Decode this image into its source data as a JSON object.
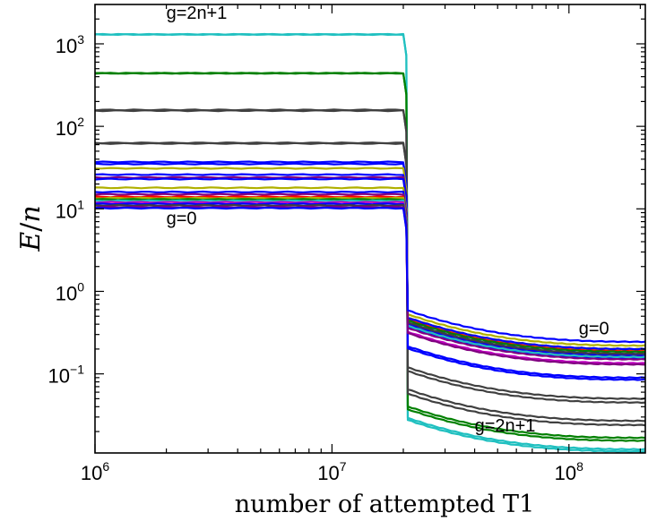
{
  "chart_data": {
    "type": "line",
    "title": "",
    "xlabel": "number of attempted T1",
    "ylabel": "E/n",
    "ylabel_parts": {
      "num": "E",
      "slash": "/",
      "den": "n"
    },
    "x_scale": "log",
    "y_scale": "log",
    "xlim": [
      1000000,
      210000000
    ],
    "ylim": [
      0.011,
      3000
    ],
    "x_ticks": [
      {
        "value": 1000000,
        "base": "10",
        "exp": "6"
      },
      {
        "value": 10000000,
        "base": "10",
        "exp": "7"
      },
      {
        "value": 100000000,
        "base": "10",
        "exp": "8"
      }
    ],
    "y_ticks": [
      {
        "value": 0.1,
        "base": "10",
        "exp": "−1"
      },
      {
        "value": 1,
        "base": "10",
        "exp": "0"
      },
      {
        "value": 10,
        "base": "10",
        "exp": "1"
      },
      {
        "value": 100,
        "base": "10",
        "exp": "2"
      },
      {
        "value": 1000,
        "base": "10",
        "exp": "3"
      }
    ],
    "grid": false,
    "legend": "none",
    "drop_x": 20000000,
    "annotations": [
      {
        "text": "g=2n+1",
        "x": 2000000,
        "y": 2000
      },
      {
        "text": "g=0",
        "x": 2000000,
        "y": 6.5
      },
      {
        "text": "g=0",
        "x": 110000000,
        "y": 0.3
      },
      {
        "text": "g=2n+1",
        "x": 40000000,
        "y": 0.02
      }
    ],
    "series": [
      {
        "color": "#20c0c0",
        "start": 1300,
        "end": 0.0115
      },
      {
        "color": "#20c0c0",
        "start": 1300,
        "end": 0.0122
      },
      {
        "color": "#008000",
        "start": 440,
        "end": 0.0155
      },
      {
        "color": "#008000",
        "start": 440,
        "end": 0.0168
      },
      {
        "color": "#404040",
        "start": 155,
        "end": 0.024
      },
      {
        "color": "#404040",
        "start": 158,
        "end": 0.027
      },
      {
        "color": "#404040",
        "start": 62,
        "end": 0.045
      },
      {
        "color": "#404040",
        "start": 63,
        "end": 0.05
      },
      {
        "color": "#0000ff",
        "start": 37,
        "end": 0.085
      },
      {
        "color": "#0000ff",
        "start": 35,
        "end": 0.09
      },
      {
        "color": "#b0b000",
        "start": 31,
        "end": 0.2
      },
      {
        "color": "#0000ff",
        "start": 26,
        "end": 0.155
      },
      {
        "color": "#800080",
        "start": 24,
        "end": 0.165
      },
      {
        "color": "#0000ff",
        "start": 23,
        "end": 0.17
      },
      {
        "color": "#b0b000",
        "start": 18,
        "end": 0.22
      },
      {
        "color": "#0000ff",
        "start": 16,
        "end": 0.175
      },
      {
        "color": "#800080",
        "start": 15,
        "end": 0.15
      },
      {
        "color": "#ff0000",
        "start": 14,
        "end": 0.19
      },
      {
        "color": "#b0b000",
        "start": 13.5,
        "end": 0.2
      },
      {
        "color": "#008000",
        "start": 13,
        "end": 0.185
      },
      {
        "color": "#20c0c0",
        "start": 12.5,
        "end": 0.16
      },
      {
        "color": "#c000c0",
        "start": 12,
        "end": 0.135
      },
      {
        "color": "#0000ff",
        "start": 11.5,
        "end": 0.2
      },
      {
        "color": "#404040",
        "start": 11,
        "end": 0.175
      },
      {
        "color": "#800080",
        "start": 10.5,
        "end": 0.13
      },
      {
        "color": "#0000ff",
        "start": 10.2,
        "end": 0.245
      }
    ]
  }
}
